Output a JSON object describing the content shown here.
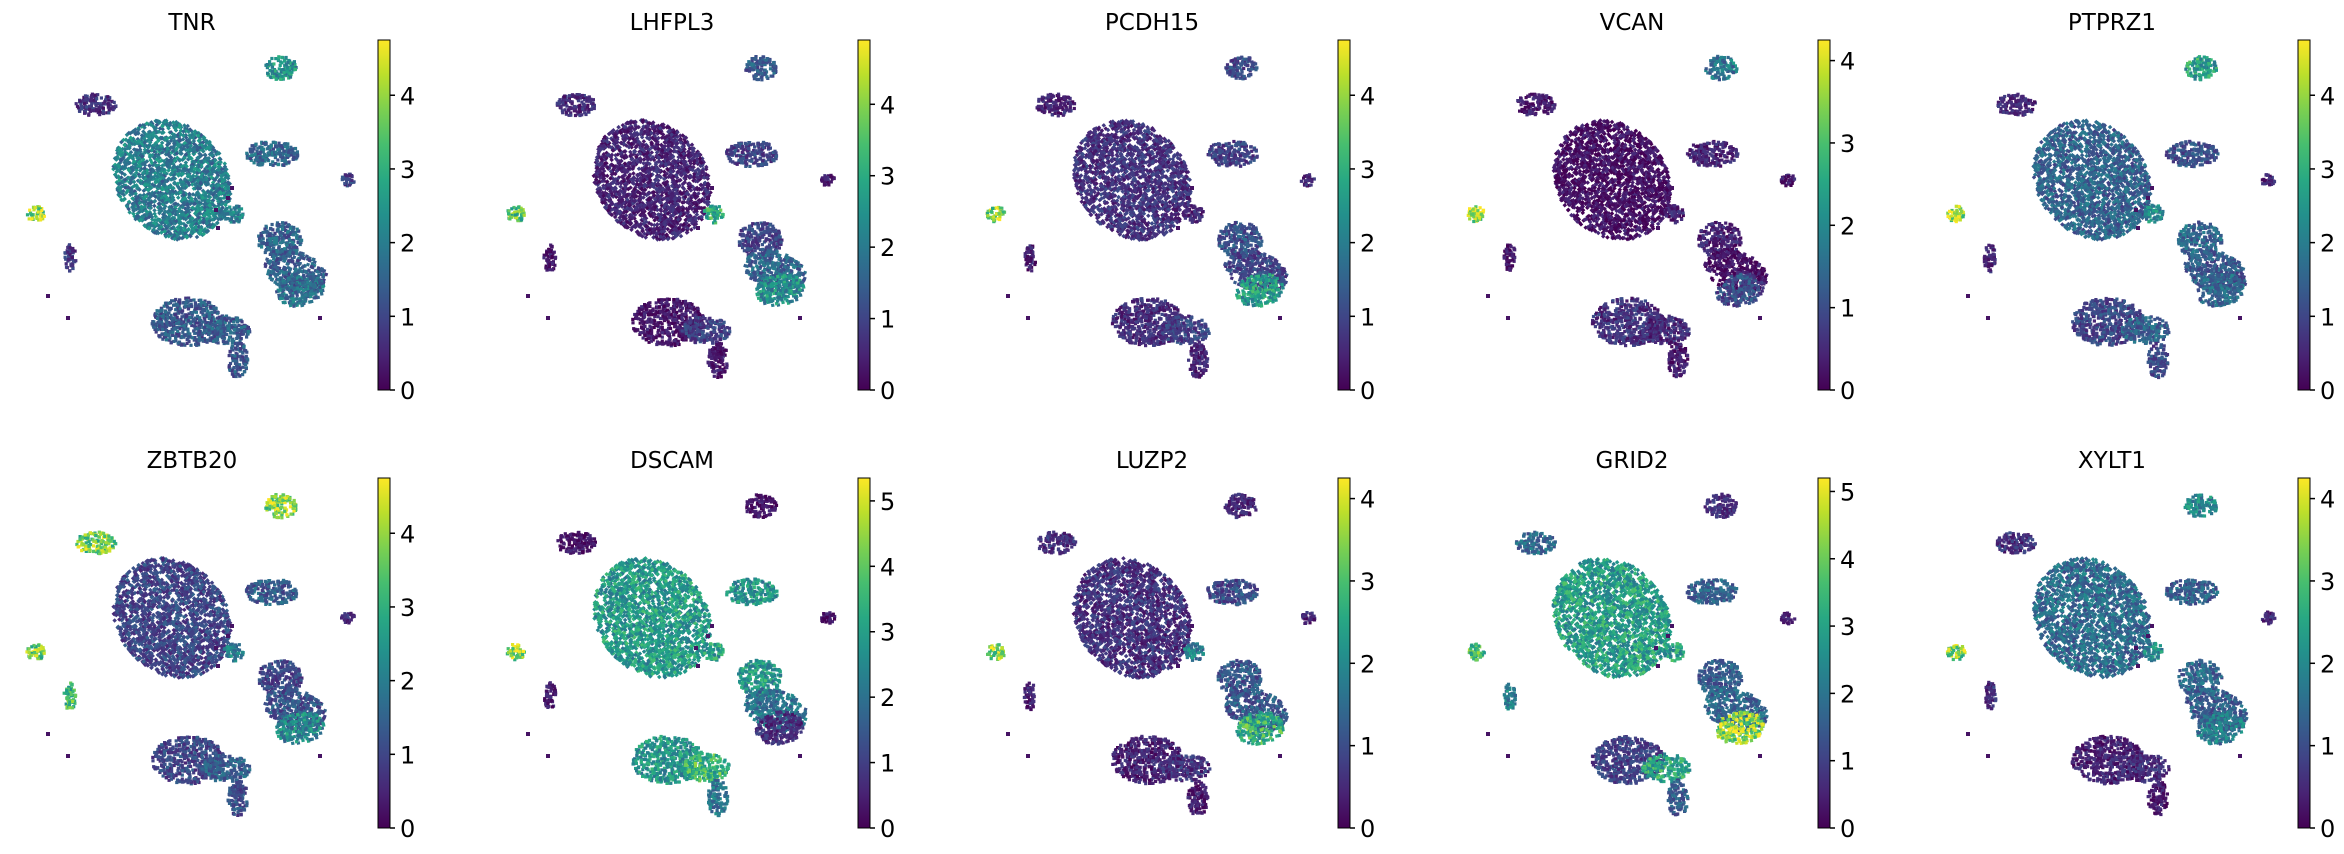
{
  "chart_data": [
    {
      "type": "scatter",
      "title": "TNR",
      "colormap": "viridis",
      "vmax": 4.75,
      "colorbar_ticks": [
        "0",
        "1",
        "2",
        "3",
        "4"
      ],
      "cluster_levels": [
        0.7,
        2.0,
        1.6,
        2.4,
        0.9,
        1.5,
        1.4,
        1.8,
        0.8,
        4.0,
        1.3,
        1.4,
        1.3,
        2.0
      ]
    },
    {
      "type": "scatter",
      "title": "LHFPL3",
      "colormap": "viridis",
      "vmax": 4.9,
      "colorbar_ticks": [
        "0",
        "1",
        "2",
        "3",
        "4"
      ],
      "cluster_levels": [
        0.6,
        0.5,
        1.0,
        1.4,
        0.4,
        1.0,
        1.6,
        2.4,
        0.3,
        3.6,
        0.3,
        1.0,
        0.3,
        3.0
      ]
    },
    {
      "type": "scatter",
      "title": "PCDH15",
      "colormap": "viridis",
      "vmax": 4.75,
      "colorbar_ticks": [
        "0",
        "1",
        "2",
        "3",
        "4"
      ],
      "cluster_levels": [
        0.5,
        0.7,
        0.9,
        1.0,
        0.5,
        1.2,
        1.0,
        2.6,
        0.4,
        3.9,
        0.6,
        0.9,
        0.5,
        0.5
      ]
    },
    {
      "type": "scatter",
      "title": "VCAN",
      "colormap": "viridis",
      "vmax": 4.25,
      "colorbar_ticks": [
        "0",
        "1",
        "2",
        "3",
        "4"
      ],
      "cluster_levels": [
        0.3,
        0.2,
        0.4,
        1.7,
        0.3,
        0.4,
        0.2,
        1.0,
        0.2,
        3.8,
        0.6,
        0.5,
        0.3,
        0.4
      ]
    },
    {
      "type": "scatter",
      "title": "PTPRZ1",
      "colormap": "viridis",
      "vmax": 4.75,
      "colorbar_ticks": [
        "0",
        "1",
        "2",
        "3",
        "4"
      ],
      "cluster_levels": [
        0.5,
        1.5,
        1.2,
        2.7,
        0.5,
        1.6,
        1.3,
        1.6,
        0.5,
        4.0,
        1.0,
        1.5,
        1.0,
        2.2
      ]
    },
    {
      "type": "scatter",
      "title": "ZBTB20",
      "colormap": "viridis",
      "vmax": 4.75,
      "colorbar_ticks": [
        "0",
        "1",
        "2",
        "3",
        "4"
      ],
      "cluster_levels": [
        3.7,
        1.0,
        1.4,
        4.0,
        0.6,
        1.0,
        1.2,
        2.2,
        3.3,
        3.7,
        1.0,
        1.5,
        1.1,
        2.0
      ]
    },
    {
      "type": "scatter",
      "title": "DSCAM",
      "colormap": "viridis",
      "vmax": 5.35,
      "colorbar_ticks": [
        "0",
        "1",
        "2",
        "3",
        "4",
        "5"
      ],
      "cluster_levels": [
        0.3,
        2.9,
        2.7,
        0.3,
        0.3,
        2.9,
        2.0,
        0.7,
        0.4,
        4.4,
        2.8,
        3.5,
        2.0,
        3.0
      ]
    },
    {
      "type": "scatter",
      "title": "LUZP2",
      "colormap": "viridis",
      "vmax": 4.25,
      "colorbar_ticks": [
        "0",
        "1",
        "2",
        "3",
        "4"
      ],
      "cluster_levels": [
        0.6,
        0.6,
        1.0,
        0.5,
        0.4,
        1.1,
        1.2,
        2.7,
        0.4,
        3.6,
        0.4,
        0.6,
        0.3,
        1.8
      ]
    },
    {
      "type": "scatter",
      "title": "GRID2",
      "colormap": "viridis",
      "vmax": 5.2,
      "colorbar_ticks": [
        "0",
        "1",
        "2",
        "3",
        "4",
        "5"
      ],
      "cluster_levels": [
        1.8,
        2.9,
        1.6,
        0.7,
        0.4,
        1.5,
        1.7,
        4.3,
        2.3,
        3.5,
        1.0,
        3.1,
        1.5,
        3.0
      ]
    },
    {
      "type": "scatter",
      "title": "XYLT1",
      "colormap": "viridis",
      "vmax": 4.25,
      "colorbar_ticks": [
        "0",
        "1",
        "2",
        "3",
        "4"
      ],
      "cluster_levels": [
        0.6,
        1.5,
        1.3,
        2.0,
        0.5,
        1.4,
        1.3,
        1.7,
        0.6,
        3.5,
        0.4,
        0.5,
        0.3,
        2.0
      ]
    }
  ]
}
